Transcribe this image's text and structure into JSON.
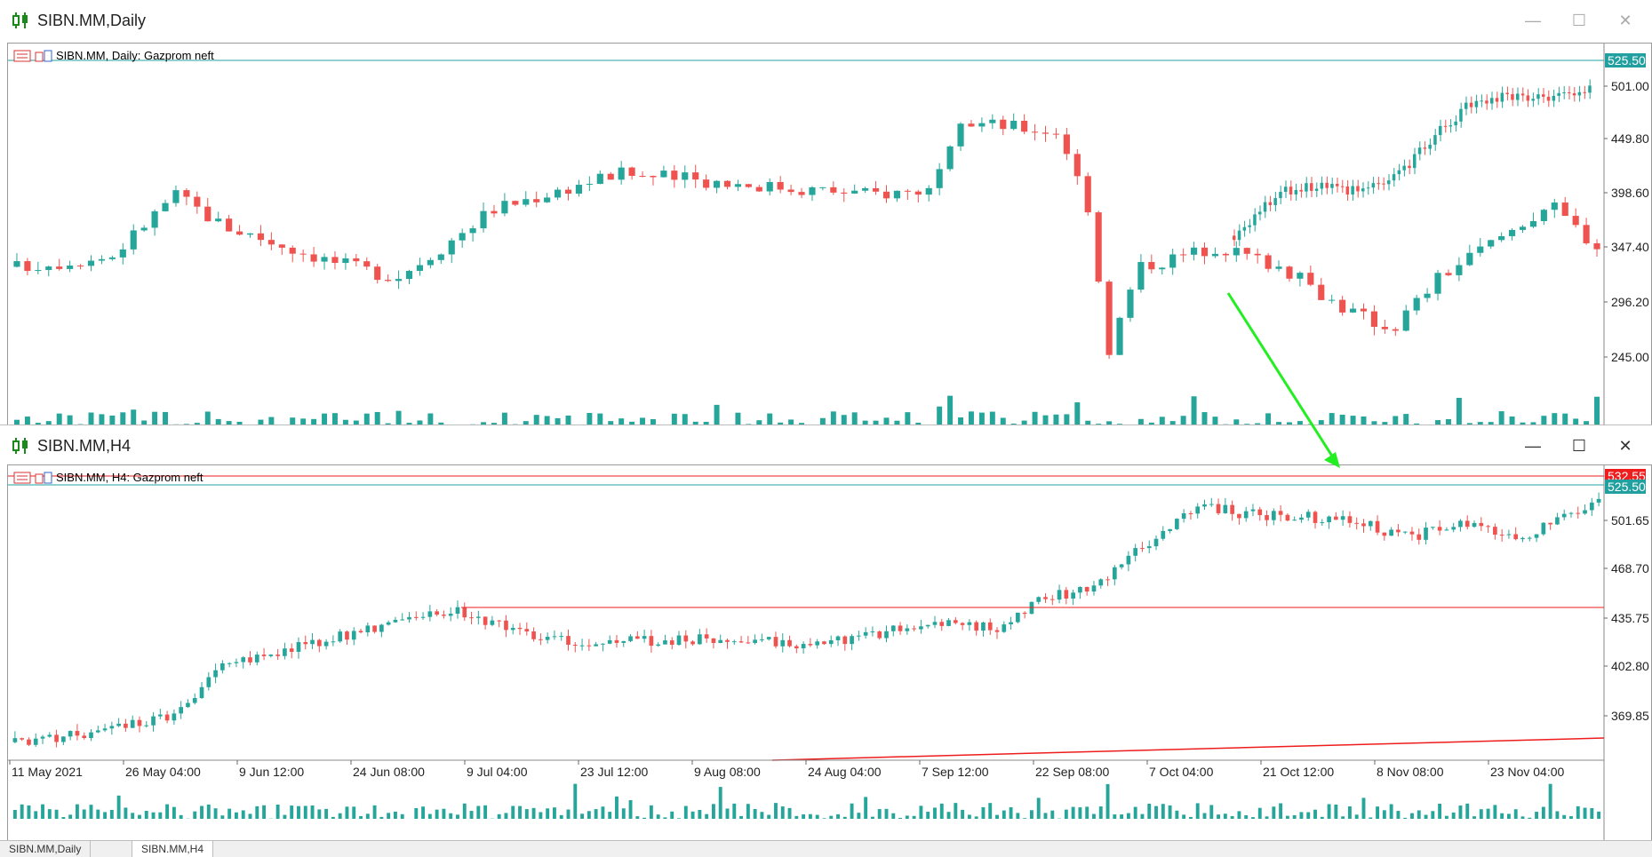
{
  "windows": [
    {
      "title": "SIBN.MM,Daily",
      "legend": "SIBN.MM, Daily:  Gazprom neft",
      "y_labels": [
        "501.00",
        "449.80",
        "398.60",
        "347.40",
        "296.20",
        "245.00"
      ],
      "price_tags": [
        {
          "text": "525.50",
          "color": "#22a0a0"
        }
      ]
    },
    {
      "title": "SIBN.MM,H4",
      "legend": "SIBN.MM, H4:  Gazprom neft",
      "y_labels": [
        "501.65",
        "468.70",
        "435.75",
        "402.80",
        "369.85"
      ],
      "price_tags": [
        {
          "text": "532.55",
          "color": "#ee1c1c"
        },
        {
          "text": "525.50",
          "color": "#22a0a0"
        }
      ],
      "x_labels": [
        "11 May 2021",
        "26 May 04:00",
        "9 Jun 12:00",
        "24 Jun 08:00",
        "9 Jul 04:00",
        "23 Jul 12:00",
        "9 Aug 08:00",
        "24 Aug 04:00",
        "7 Sep 12:00",
        "22 Sep 08:00",
        "7 Oct 04:00",
        "21 Oct 12:00",
        "8 Nov 08:00",
        "23 Nov 04:00"
      ]
    }
  ],
  "tabs": [
    "SIBN.MM,Daily",
    "SIBN.MM,H4"
  ],
  "colors": {
    "bull": "#26a69a",
    "bear": "#ef5350",
    "hline_teal": "#22a0a0",
    "hline_red": "#ee1c1c",
    "arrow": "#22ee22"
  }
}
